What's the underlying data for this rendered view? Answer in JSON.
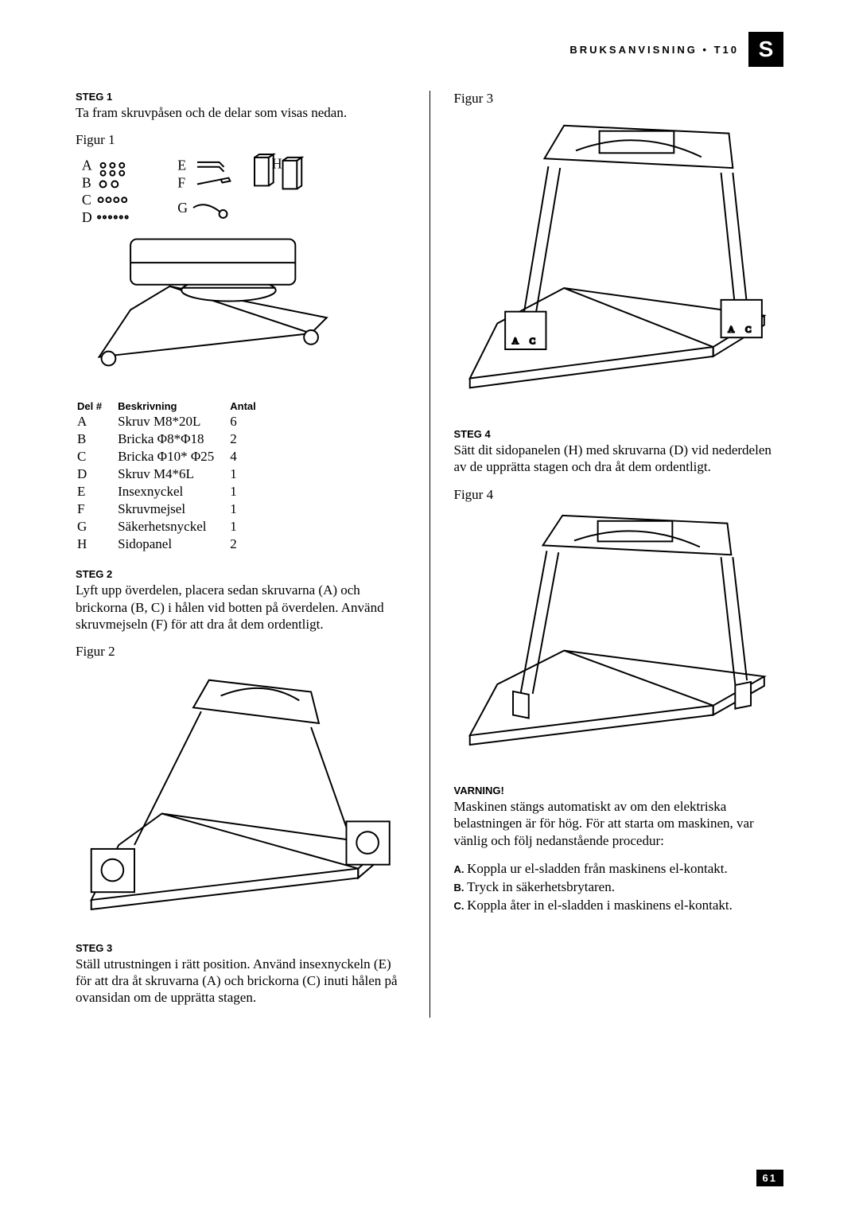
{
  "header": {
    "breadcrumb": "BRUKSANVISNING • T10",
    "lang_badge": "S"
  },
  "left": {
    "step1": {
      "heading": "STEG 1",
      "text": "Ta fram skruvpåsen och de delar som visas nedan."
    },
    "fig1_label": "Figur 1",
    "parts_table": {
      "columns": [
        "Del #",
        "Beskrivning",
        "Antal"
      ],
      "rows": [
        [
          "A",
          "Skruv M8*20L",
          "6"
        ],
        [
          "B",
          "Bricka Φ8*Φ18",
          "2"
        ],
        [
          "C",
          "Bricka Φ10* Φ25",
          "4"
        ],
        [
          "D",
          "Skruv M4*6L",
          "1"
        ],
        [
          "E",
          "Insexnyckel",
          "1"
        ],
        [
          "F",
          "Skruvmejsel",
          "1"
        ],
        [
          "G",
          "Säkerhetsnyckel",
          "1"
        ],
        [
          "H",
          "Sidopanel",
          "2"
        ]
      ]
    },
    "step2": {
      "heading": "STEG 2",
      "text": "Lyft upp överdelen, placera sedan skruvarna (A) och brickorna (B, C) i hålen vid botten på överdelen. Använd skruvmejseln (F) för att dra åt dem ordentligt."
    },
    "fig2_label": "Figur 2",
    "step3": {
      "heading": "STEG 3",
      "text": "Ställ utrustningen i rätt position. Använd insexnyckeln (E) för att dra åt skruvarna (A) och brickorna (C) inuti hålen på ovansidan om de upprätta stagen."
    }
  },
  "right": {
    "fig3_label": "Figur 3",
    "step4": {
      "heading": "STEG 4",
      "text": "Sätt dit sidopanelen (H) med skruvarna (D) vid nederdelen av de upprätta stagen och dra åt dem ordentligt."
    },
    "fig4_label": "Figur 4",
    "warning_heading": "VARNING!",
    "warning_text": "Maskinen stängs automatiskt av om den elektriska belastningen är för hög. För att starta om maskinen, var vänlig och följ nedanstående procedur:",
    "warning_items": [
      {
        "label": "A.",
        "text": "Koppla ur el-sladden från maskinens el-kontakt."
      },
      {
        "label": "B.",
        "text": "Tryck in säkerhetsbrytaren."
      },
      {
        "label": "C.",
        "text": "Koppla åter in el-sladden i maskinens el-kontakt."
      }
    ]
  },
  "fig1_parts_letters": {
    "A": "A",
    "B": "B",
    "C": "C",
    "D": "D",
    "E": "E",
    "F": "F",
    "G": "G",
    "H": "H"
  },
  "page_number": "61",
  "colors": {
    "bg": "#ffffff",
    "text": "#000000",
    "badge_bg": "#000000",
    "badge_fg": "#ffffff"
  }
}
